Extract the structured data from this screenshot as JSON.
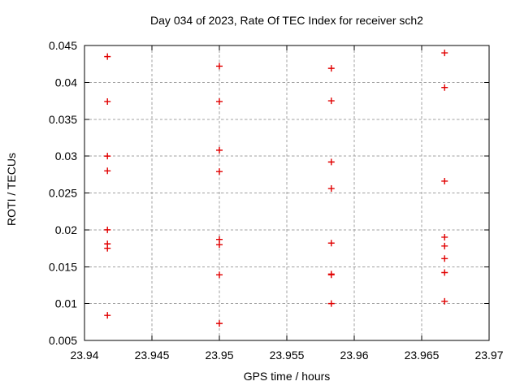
{
  "chart_data": {
    "type": "scatter",
    "title": "Day 034 of 2023, Rate Of TEC Index for receiver sch2",
    "xlabel": "GPS time / hours",
    "ylabel": "ROTI / TECUs",
    "xlim": [
      23.94,
      23.97
    ],
    "ylim": [
      0.005,
      0.045
    ],
    "grid": true,
    "legend_position": "none",
    "xticks": [
      {
        "v": 23.94,
        "label": "23.94"
      },
      {
        "v": 23.945,
        "label": "23.945"
      },
      {
        "v": 23.95,
        "label": "23.95"
      },
      {
        "v": 23.955,
        "label": "23.955"
      },
      {
        "v": 23.96,
        "label": "23.96"
      },
      {
        "v": 23.965,
        "label": "23.965"
      },
      {
        "v": 23.97,
        "label": "23.97"
      }
    ],
    "yticks": [
      {
        "v": 0.005,
        "label": "0.005"
      },
      {
        "v": 0.01,
        "label": "0.01"
      },
      {
        "v": 0.015,
        "label": "0.015"
      },
      {
        "v": 0.02,
        "label": "0.02"
      },
      {
        "v": 0.025,
        "label": "0.025"
      },
      {
        "v": 0.03,
        "label": "0.03"
      },
      {
        "v": 0.035,
        "label": "0.035"
      },
      {
        "v": 0.04,
        "label": "0.04"
      },
      {
        "v": 0.045,
        "label": "0.045"
      }
    ],
    "marker": {
      "shape": "plus",
      "color": "#e10000",
      "size": 8
    },
    "style": {
      "grid_color": "#a0a0a0",
      "axis_color": "#000000",
      "background": "#ffffff"
    },
    "series": [
      {
        "name": "sch2",
        "points": [
          [
            23.9417,
            0.0435
          ],
          [
            23.9417,
            0.0374
          ],
          [
            23.9417,
            0.03
          ],
          [
            23.9417,
            0.028
          ],
          [
            23.9417,
            0.02
          ],
          [
            23.9417,
            0.0181
          ],
          [
            23.9417,
            0.0175
          ],
          [
            23.9417,
            0.0084
          ],
          [
            23.95,
            0.0422
          ],
          [
            23.95,
            0.0374
          ],
          [
            23.95,
            0.0308
          ],
          [
            23.95,
            0.0279
          ],
          [
            23.95,
            0.0187
          ],
          [
            23.95,
            0.018
          ],
          [
            23.95,
            0.0139
          ],
          [
            23.95,
            0.0073
          ],
          [
            23.9583,
            0.0419
          ],
          [
            23.9583,
            0.0375
          ],
          [
            23.9583,
            0.0292
          ],
          [
            23.9583,
            0.0256
          ],
          [
            23.9583,
            0.0182
          ],
          [
            23.9583,
            0.014
          ],
          [
            23.9583,
            0.0139
          ],
          [
            23.9583,
            0.01
          ],
          [
            23.9667,
            0.044
          ],
          [
            23.9667,
            0.0393
          ],
          [
            23.9667,
            0.0266
          ],
          [
            23.9667,
            0.019
          ],
          [
            23.9667,
            0.0178
          ],
          [
            23.9667,
            0.0161
          ],
          [
            23.9667,
            0.0142
          ],
          [
            23.9667,
            0.0103
          ]
        ]
      }
    ]
  }
}
